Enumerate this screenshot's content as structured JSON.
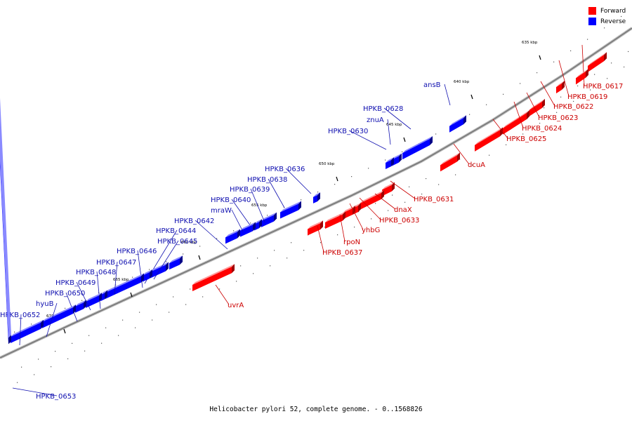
{
  "caption": "Helicobacter pylori 52, complete genome. - 0..1568826",
  "colors": {
    "forward": "#ff0000",
    "reverse": "#0000ff",
    "forward_label": "#cc0000",
    "reverse_label": "#1010b0",
    "backbone": "#777777"
  },
  "legend": [
    {
      "label": "Forward",
      "color": "#ff0000"
    },
    {
      "label": "Reverse",
      "color": "#0000ff"
    }
  ],
  "scale_unit": "kbp",
  "scale_ticks": [
    {
      "label": "635 kbp",
      "pos": 635
    },
    {
      "label": "640 kbp",
      "pos": 640
    },
    {
      "label": "645 kbp",
      "pos": 645
    },
    {
      "label": "650 kbp",
      "pos": 650
    },
    {
      "label": "655 kbp",
      "pos": 655
    },
    {
      "label": "660 kbp",
      "pos": 660
    },
    {
      "label": "665 kbp",
      "pos": 665
    },
    {
      "label": "670 kbp",
      "pos": 670
    }
  ],
  "genes": [
    {
      "label": "HPKB_0617",
      "strand": "forward"
    },
    {
      "label": "HPKB_0619",
      "strand": "forward"
    },
    {
      "label": "HPKB_0622",
      "strand": "forward"
    },
    {
      "label": "HPKB_0623",
      "strand": "forward"
    },
    {
      "label": "HPKB_0624",
      "strand": "forward"
    },
    {
      "label": "HPKB_0625",
      "strand": "forward"
    },
    {
      "label": "dcuA",
      "strand": "forward"
    },
    {
      "label": "HPKB_0631",
      "strand": "forward"
    },
    {
      "label": "dnaX",
      "strand": "forward"
    },
    {
      "label": "HPKB_0633",
      "strand": "forward"
    },
    {
      "label": "yhbG",
      "strand": "forward"
    },
    {
      "label": "rpoN",
      "strand": "forward"
    },
    {
      "label": "HPKB_0637",
      "strand": "forward"
    },
    {
      "label": "uvrA",
      "strand": "forward"
    },
    {
      "label": "ansB",
      "strand": "reverse"
    },
    {
      "label": "HPKB_0628",
      "strand": "reverse"
    },
    {
      "label": "znuA",
      "strand": "reverse"
    },
    {
      "label": "HPKB_0630",
      "strand": "reverse"
    },
    {
      "label": "HPKB_0636",
      "strand": "reverse"
    },
    {
      "label": "HPKB_0638",
      "strand": "reverse"
    },
    {
      "label": "HPKB_0639",
      "strand": "reverse"
    },
    {
      "label": "HPKB_0640",
      "strand": "reverse"
    },
    {
      "label": "mraW",
      "strand": "reverse"
    },
    {
      "label": "HPKB_0642",
      "strand": "reverse"
    },
    {
      "label": "HPKB_0644",
      "strand": "reverse"
    },
    {
      "label": "HPKB_0645",
      "strand": "reverse"
    },
    {
      "label": "HPKB_0646",
      "strand": "reverse"
    },
    {
      "label": "HPKB_0647",
      "strand": "reverse"
    },
    {
      "label": "HPKB_0648",
      "strand": "reverse"
    },
    {
      "label": "HPKB_0649",
      "strand": "reverse"
    },
    {
      "label": "HPKB_0650",
      "strand": "reverse"
    },
    {
      "label": "hyuB",
      "strand": "reverse"
    },
    {
      "label": "HPKB_0652",
      "strand": "reverse"
    },
    {
      "label": "HPKB_0653",
      "strand": "reverse"
    }
  ]
}
